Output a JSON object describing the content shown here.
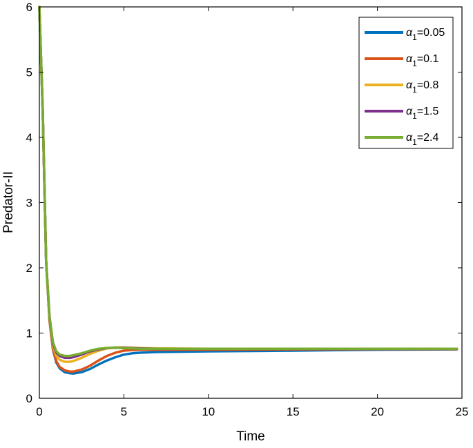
{
  "chart_data": {
    "type": "line",
    "xlabel": "Time",
    "ylabel": "Predator-II",
    "xlim": [
      0,
      25
    ],
    "ylim": [
      0,
      6
    ],
    "xticks": [
      "0",
      "5",
      "10",
      "15",
      "20",
      "25"
    ],
    "yticks": [
      "0",
      "1",
      "2",
      "3",
      "4",
      "5",
      "6"
    ],
    "grid": false,
    "legend_position": "top-right",
    "series": [
      {
        "name": "α1=0.05",
        "legend_base": "α",
        "legend_sub": "1",
        "legend_value": "=0.05",
        "color": "#0072BD",
        "points": [
          [
            0,
            6.0
          ],
          [
            0.2,
            4.4
          ],
          [
            0.4,
            2.1
          ],
          [
            0.6,
            1.2
          ],
          [
            0.8,
            0.75
          ],
          [
            1.0,
            0.55
          ],
          [
            1.2,
            0.46
          ],
          [
            1.5,
            0.4
          ],
          [
            1.8,
            0.385
          ],
          [
            2.0,
            0.38
          ],
          [
            2.5,
            0.4
          ],
          [
            3.0,
            0.45
          ],
          [
            3.5,
            0.52
          ],
          [
            4.0,
            0.58
          ],
          [
            4.5,
            0.63
          ],
          [
            5.0,
            0.67
          ],
          [
            5.5,
            0.69
          ],
          [
            6.0,
            0.7
          ],
          [
            7.0,
            0.71
          ],
          [
            10.0,
            0.72
          ],
          [
            15.0,
            0.73
          ],
          [
            20.0,
            0.745
          ],
          [
            24.7,
            0.75
          ]
        ]
      },
      {
        "name": "α1=0.1",
        "legend_base": "α",
        "legend_sub": "1",
        "legend_value": "=0.1",
        "color": "#D95319",
        "points": [
          [
            0,
            6.0
          ],
          [
            0.2,
            4.4
          ],
          [
            0.4,
            2.1
          ],
          [
            0.6,
            1.2
          ],
          [
            0.8,
            0.76
          ],
          [
            1.0,
            0.57
          ],
          [
            1.2,
            0.48
          ],
          [
            1.5,
            0.43
          ],
          [
            1.8,
            0.41
          ],
          [
            2.0,
            0.41
          ],
          [
            2.5,
            0.44
          ],
          [
            3.0,
            0.5
          ],
          [
            3.5,
            0.58
          ],
          [
            4.0,
            0.65
          ],
          [
            4.5,
            0.7
          ],
          [
            5.0,
            0.73
          ],
          [
            5.5,
            0.74
          ],
          [
            6.0,
            0.745
          ],
          [
            7.0,
            0.745
          ],
          [
            10.0,
            0.745
          ],
          [
            15.0,
            0.75
          ],
          [
            20.0,
            0.755
          ],
          [
            24.7,
            0.755
          ]
        ]
      },
      {
        "name": "α1=0.8",
        "legend_base": "α",
        "legend_sub": "1",
        "legend_value": "=0.8",
        "color": "#EDB120",
        "points": [
          [
            0,
            6.0
          ],
          [
            0.2,
            4.4
          ],
          [
            0.4,
            2.1
          ],
          [
            0.6,
            1.25
          ],
          [
            0.8,
            0.8
          ],
          [
            1.0,
            0.65
          ],
          [
            1.2,
            0.59
          ],
          [
            1.5,
            0.56
          ],
          [
            1.8,
            0.56
          ],
          [
            2.0,
            0.57
          ],
          [
            2.5,
            0.62
          ],
          [
            3.0,
            0.68
          ],
          [
            3.5,
            0.73
          ],
          [
            4.0,
            0.765
          ],
          [
            4.5,
            0.78
          ],
          [
            5.0,
            0.78
          ],
          [
            5.5,
            0.775
          ],
          [
            6.0,
            0.77
          ],
          [
            7.0,
            0.765
          ],
          [
            10.0,
            0.76
          ],
          [
            15.0,
            0.76
          ],
          [
            20.0,
            0.76
          ],
          [
            24.7,
            0.76
          ]
        ]
      },
      {
        "name": "α1=1.5",
        "legend_base": "α",
        "legend_sub": "1",
        "legend_value": "=1.5",
        "color": "#7E2F8E",
        "points": [
          [
            0,
            6.0
          ],
          [
            0.2,
            4.4
          ],
          [
            0.4,
            2.1
          ],
          [
            0.6,
            1.25
          ],
          [
            0.8,
            0.84
          ],
          [
            1.0,
            0.7
          ],
          [
            1.2,
            0.65
          ],
          [
            1.5,
            0.62
          ],
          [
            1.8,
            0.62
          ],
          [
            2.0,
            0.63
          ],
          [
            2.5,
            0.67
          ],
          [
            3.0,
            0.72
          ],
          [
            3.5,
            0.75
          ],
          [
            4.0,
            0.77
          ],
          [
            4.5,
            0.775
          ],
          [
            5.0,
            0.775
          ],
          [
            5.5,
            0.77
          ],
          [
            6.0,
            0.765
          ],
          [
            7.0,
            0.76
          ],
          [
            10.0,
            0.76
          ],
          [
            15.0,
            0.76
          ],
          [
            20.0,
            0.76
          ],
          [
            24.7,
            0.76
          ]
        ]
      },
      {
        "name": "α1=2.4",
        "legend_base": "α",
        "legend_sub": "1",
        "legend_value": "=2.4",
        "color": "#77AC30",
        "points": [
          [
            0,
            6.0
          ],
          [
            0.2,
            4.4
          ],
          [
            0.4,
            2.1
          ],
          [
            0.6,
            1.25
          ],
          [
            0.8,
            0.86
          ],
          [
            1.0,
            0.72
          ],
          [
            1.2,
            0.67
          ],
          [
            1.5,
            0.65
          ],
          [
            1.8,
            0.65
          ],
          [
            2.0,
            0.66
          ],
          [
            2.5,
            0.69
          ],
          [
            3.0,
            0.73
          ],
          [
            3.5,
            0.76
          ],
          [
            4.0,
            0.77
          ],
          [
            4.5,
            0.775
          ],
          [
            5.0,
            0.77
          ],
          [
            5.5,
            0.765
          ],
          [
            6.0,
            0.76
          ],
          [
            7.0,
            0.76
          ],
          [
            10.0,
            0.76
          ],
          [
            15.0,
            0.76
          ],
          [
            20.0,
            0.76
          ],
          [
            24.7,
            0.76
          ]
        ]
      }
    ]
  }
}
